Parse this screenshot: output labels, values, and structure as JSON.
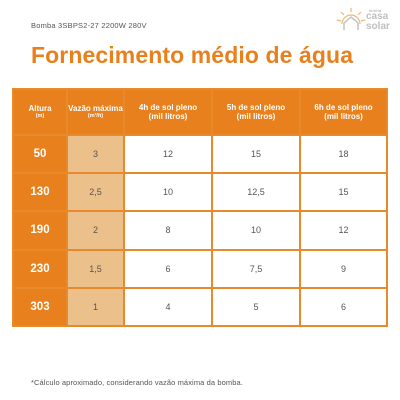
{
  "subtitle": "Bomba  3SBPS2-27 2200W 280V",
  "logo": {
    "small": "minha",
    "casa": "casa",
    "solar": "solar"
  },
  "title": "Fornecimento médio de água",
  "headers": [
    {
      "line1": "Altura",
      "line2": "(m)"
    },
    {
      "line1": "Vazão máxima",
      "line2": "(m³/h)"
    },
    {
      "line1": "4h de sol pleno",
      "line2": "(mil litros)"
    },
    {
      "line1": "5h de sol pleno",
      "line2": "(mil litros)"
    },
    {
      "line1": "6h de sol pleno",
      "line2": "(mil litros)"
    }
  ],
  "rows": [
    {
      "altura": "50",
      "vazao": "3",
      "h4": "12",
      "h5": "15",
      "h6": "18"
    },
    {
      "altura": "130",
      "vazao": "2,5",
      "h4": "10",
      "h5": "12,5",
      "h6": "15"
    },
    {
      "altura": "190",
      "vazao": "2",
      "h4": "8",
      "h5": "10",
      "h6": "12"
    },
    {
      "altura": "230",
      "vazao": "1,5",
      "h4": "6",
      "h5": "7,5",
      "h6": "9"
    },
    {
      "altura": "303",
      "vazao": "1",
      "h4": "4",
      "h5": "5",
      "h6": "6"
    }
  ],
  "note": "*Cálculo aproximado, considerando vazão máxima da bomba.",
  "colors": {
    "accent": "#e8811d",
    "light_accent": "#ecc08b",
    "text": "#555555",
    "logo_gray": "#bfbfbf"
  },
  "icons": {
    "logo": "sun-house-icon"
  }
}
